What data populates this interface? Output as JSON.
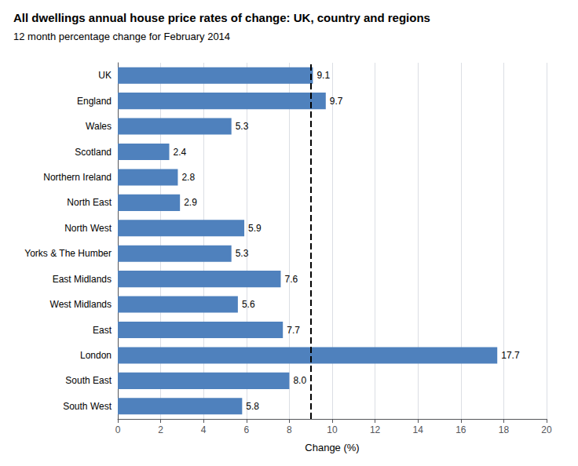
{
  "chart_data": {
    "type": "bar",
    "orientation": "horizontal",
    "title": "All dwellings annual house price rates of change: UK, country and regions",
    "subtitle": "12 month percentage change for February 2014",
    "xlabel": "Change (%)",
    "categories": [
      "South West",
      "South East",
      "London",
      "East",
      "West Midlands",
      "East Midlands",
      "Yorks & The Humber",
      "North West",
      "North East",
      "Northern Ireland",
      "Scotland",
      "Wales",
      "England",
      "UK"
    ],
    "values": [
      5.8,
      8.0,
      17.7,
      7.7,
      5.6,
      7.6,
      5.3,
      5.9,
      2.9,
      2.8,
      2.4,
      5.3,
      9.7,
      9.1
    ],
    "value_labels": [
      "5.8",
      "8.0",
      "17.7",
      "7.7",
      "5.6",
      "7.6",
      "5.3",
      "5.9",
      "2.9",
      "2.8",
      "2.4",
      "5.3",
      "9.7",
      "9.1"
    ],
    "data_labels": true,
    "color": "#4F81BD",
    "xlim": [
      0,
      20
    ],
    "xticks": [
      0,
      2,
      4,
      6,
      8,
      10,
      12,
      14,
      16,
      18,
      20
    ],
    "grid": "x",
    "vlines": [
      {
        "x": 9.0,
        "line_style": "dashed",
        "color": "#000000"
      }
    ]
  }
}
